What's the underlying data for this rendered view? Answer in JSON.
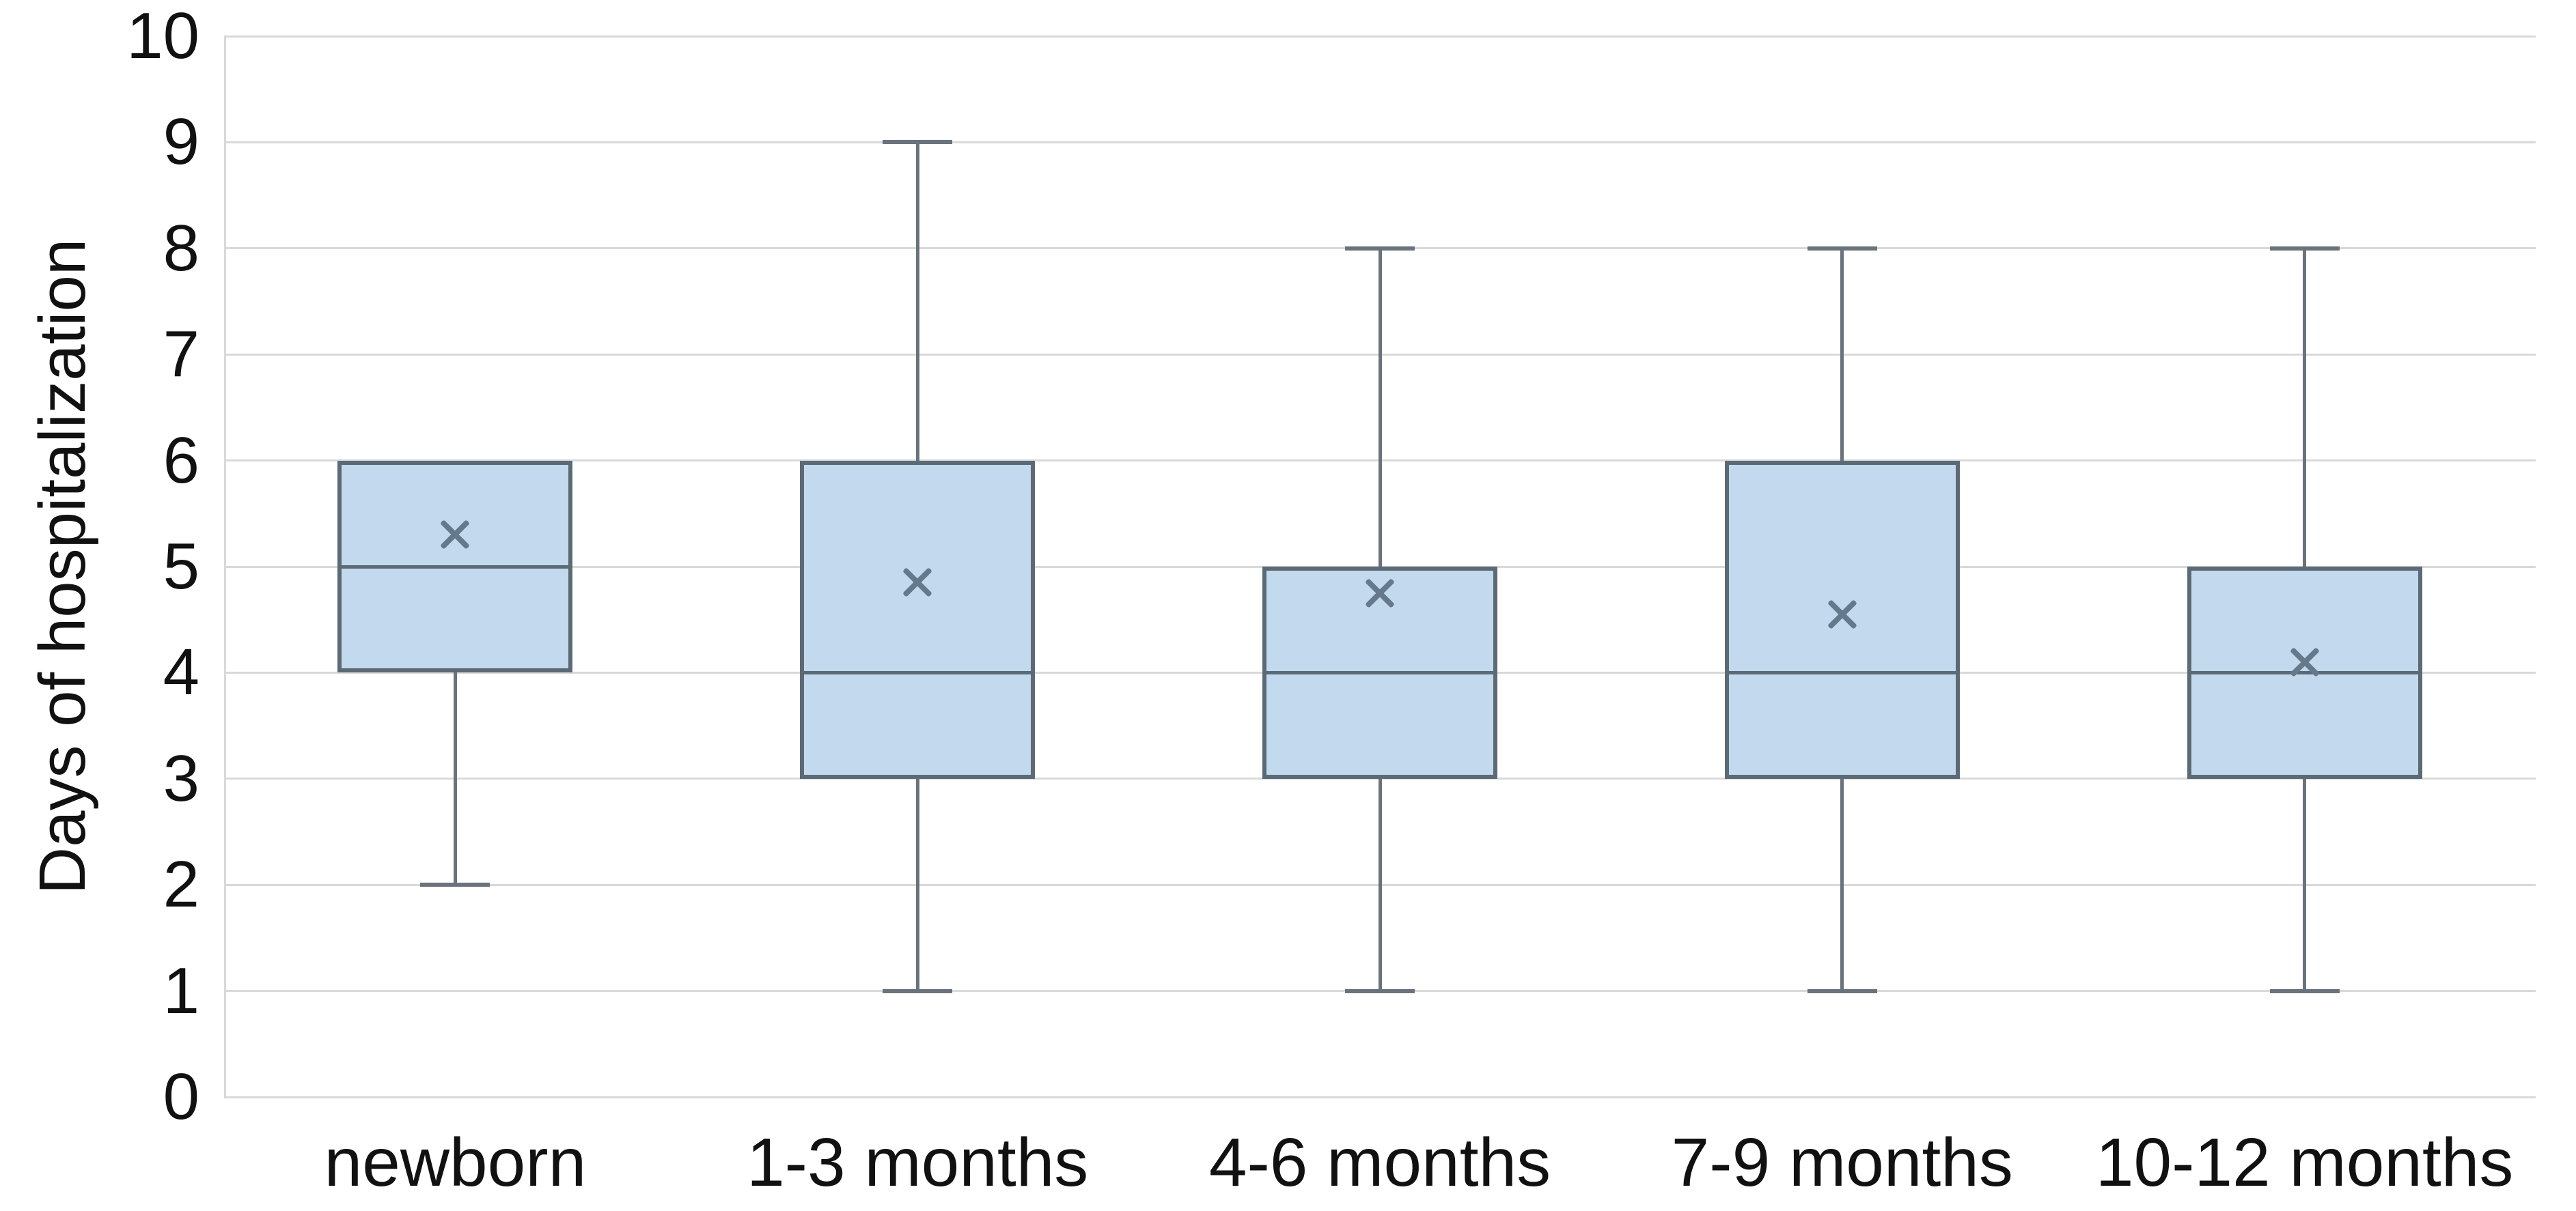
{
  "chart_data": {
    "type": "box",
    "ylabel": "Days of hospitalization",
    "ylim": [
      0,
      10
    ],
    "yticks": [
      0,
      1,
      2,
      3,
      4,
      5,
      6,
      7,
      8,
      9,
      10
    ],
    "grid": true,
    "categories": [
      "newborn",
      "1-3 months",
      "4-6 months",
      "7-9 months",
      "10-12 months"
    ],
    "series": [
      {
        "name": "newborn",
        "min": 2,
        "q1": 4,
        "median": 5,
        "q3": 6,
        "max": 6,
        "mean": 5.3
      },
      {
        "name": "1-3 months",
        "min": 1,
        "q1": 3,
        "median": 4,
        "q3": 6,
        "max": 9,
        "mean": 4.85
      },
      {
        "name": "4-6 months",
        "min": 1,
        "q1": 3,
        "median": 4,
        "q3": 5,
        "max": 8,
        "mean": 4.75
      },
      {
        "name": "7-9 months",
        "min": 1,
        "q1": 3,
        "median": 4,
        "q3": 6,
        "max": 8,
        "mean": 4.55
      },
      {
        "name": "10-12 months",
        "min": 1,
        "q1": 3,
        "median": 4,
        "q3": 5,
        "max": 8,
        "mean": 4.1
      }
    ],
    "colors": {
      "box_fill": "#c3daee",
      "box_stroke": "#5c6a76",
      "median": "#5c6a76",
      "whisker": "#6a737c",
      "mean_marker": "#66798c",
      "gridline": "#d9d9d9",
      "axis_line": "#d9d9d9",
      "text": "#111111"
    }
  }
}
